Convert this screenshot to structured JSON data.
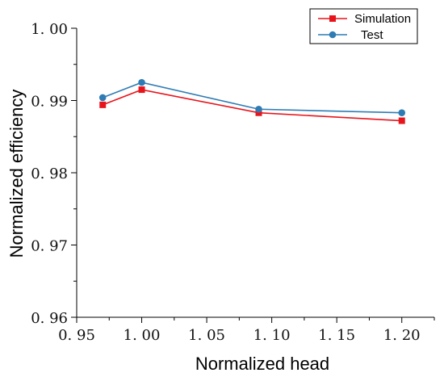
{
  "chart_data": {
    "type": "line",
    "xlabel": "Normalized head",
    "ylabel": "Normalized efficiency",
    "xlim": [
      0.95,
      1.225
    ],
    "ylim": [
      0.96,
      1.0
    ],
    "x_ticks": [
      0.95,
      1.0,
      1.05,
      1.1,
      1.15,
      1.2
    ],
    "x_tick_labels": [
      "0. 95",
      "1. 00",
      "1. 05",
      "1. 10",
      "1. 15",
      "1. 20"
    ],
    "y_ticks": [
      0.96,
      0.97,
      0.98,
      0.99,
      1.0
    ],
    "y_tick_labels": [
      "0. 96",
      "0. 97",
      "0. 98",
      "0. 99",
      "1. 00"
    ],
    "grid": false,
    "legend_position": "top-right",
    "series": [
      {
        "name": "Simulation",
        "color": "#e8141c",
        "marker": "square",
        "x": [
          0.97,
          1.0,
          1.09,
          1.2
        ],
        "y": [
          0.9894,
          0.9915,
          0.9883,
          0.9872
        ]
      },
      {
        "name": "Test",
        "color": "#2f7cb4",
        "marker": "circle",
        "x": [
          0.97,
          1.0,
          1.09,
          1.2
        ],
        "y": [
          0.9904,
          0.9925,
          0.9888,
          0.9883
        ]
      }
    ]
  }
}
